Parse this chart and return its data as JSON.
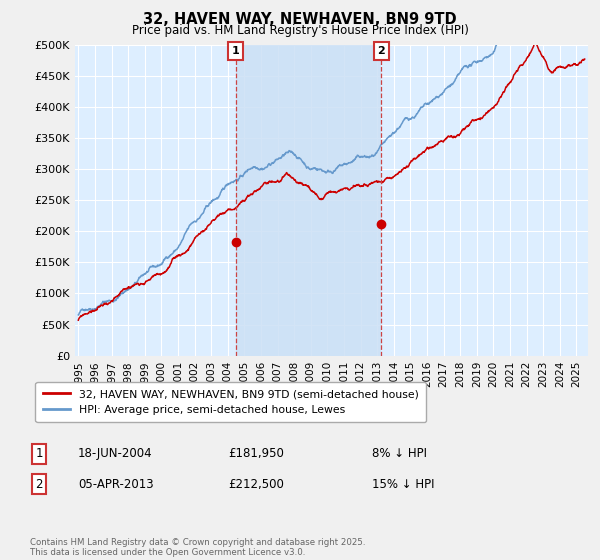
{
  "title": "32, HAVEN WAY, NEWHAVEN, BN9 9TD",
  "subtitle": "Price paid vs. HM Land Registry's House Price Index (HPI)",
  "ylabel_ticks": [
    "£0",
    "£50K",
    "£100K",
    "£150K",
    "£200K",
    "£250K",
    "£300K",
    "£350K",
    "£400K",
    "£450K",
    "£500K"
  ],
  "ytick_values": [
    0,
    50000,
    100000,
    150000,
    200000,
    250000,
    300000,
    350000,
    400000,
    450000,
    500000
  ],
  "ylim": [
    0,
    500000
  ],
  "xlim_start": 1994.8,
  "xlim_end": 2025.7,
  "marker1_x": 2004.47,
  "marker1_y": 181950,
  "marker2_x": 2013.26,
  "marker2_y": 212500,
  "marker1_date": "18-JUN-2004",
  "marker1_price": "£181,950",
  "marker1_hpi": "8% ↓ HPI",
  "marker2_date": "05-APR-2013",
  "marker2_price": "£212,500",
  "marker2_hpi": "15% ↓ HPI",
  "legend_label1": "32, HAVEN WAY, NEWHAVEN, BN9 9TD (semi-detached house)",
  "legend_label2": "HPI: Average price, semi-detached house, Lewes",
  "footer": "Contains HM Land Registry data © Crown copyright and database right 2025.\nThis data is licensed under the Open Government Licence v3.0.",
  "color_red": "#cc0000",
  "color_blue": "#6699cc",
  "color_bg": "#ddeeff",
  "color_shade": "#cce0f5",
  "color_grid": "#ffffff",
  "color_marker_box": "#cc3333",
  "color_fig_bg": "#f0f0f0"
}
